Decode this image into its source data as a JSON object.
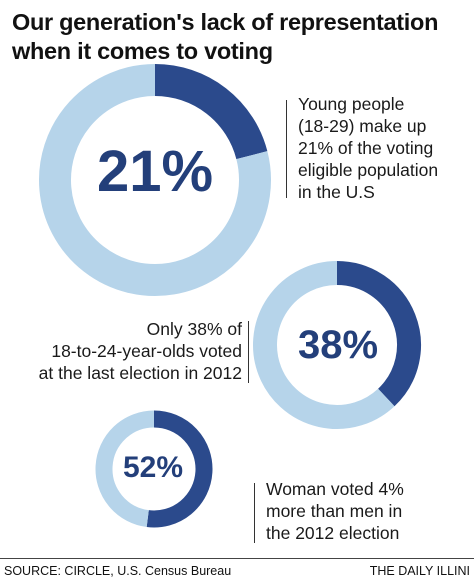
{
  "title": {
    "line1": "Our generation's lack of representation",
    "line2": "when it comes to voting"
  },
  "colors": {
    "light": "#b6d4ea",
    "dark": "#2b4a8c",
    "text": "#233f7a"
  },
  "chart_data": [
    {
      "type": "pie",
      "label": "21%",
      "value": 21,
      "slices": [
        {
          "value": 21,
          "color": "#2b4a8c"
        },
        {
          "value": 79,
          "color": "#b6d4ea"
        }
      ],
      "annotation": [
        "Young people",
        "(18-29) make up",
        "21% of the voting",
        "eligible population",
        "in the U.S"
      ]
    },
    {
      "type": "pie",
      "label": "38%",
      "value": 38,
      "slices": [
        {
          "value": 38,
          "color": "#2b4a8c"
        },
        {
          "value": 62,
          "color": "#b6d4ea"
        }
      ],
      "annotation": [
        "Only 38% of",
        "18-to-24-year-olds voted",
        "at the last election in 2012"
      ]
    },
    {
      "type": "pie",
      "label": "52%",
      "value": 52,
      "slices": [
        {
          "value": 52,
          "color": "#2b4a8c"
        },
        {
          "value": 48,
          "color": "#b6d4ea"
        }
      ],
      "annotation": [
        "Woman voted 4%",
        "more than men in",
        "the 2012 election"
      ]
    }
  ],
  "footer": {
    "source": "SOURCE: CIRCLE, U.S. Census Bureau",
    "credit": "THE DAILY ILLINI"
  }
}
